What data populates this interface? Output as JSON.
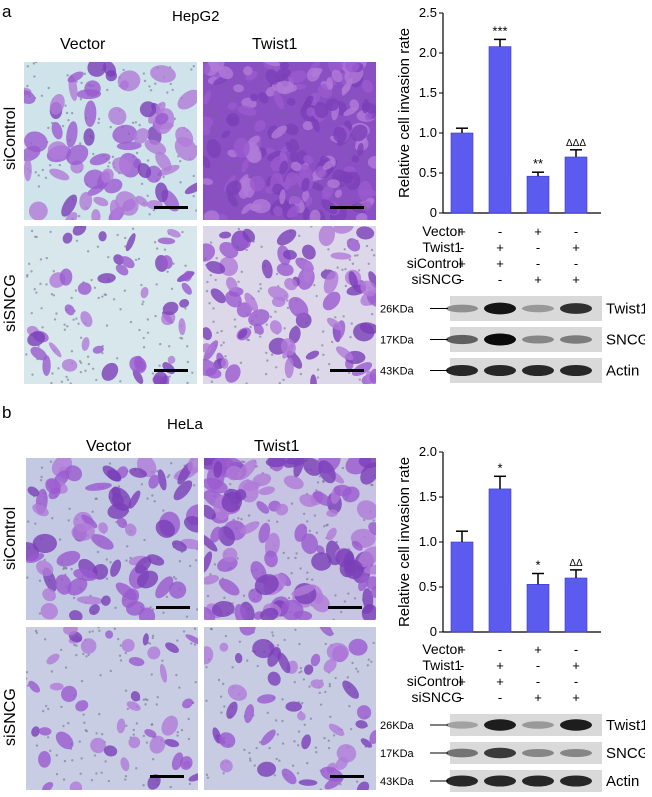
{
  "panels": [
    {
      "letter": "a",
      "cell_line": "HepG2",
      "columns": [
        "Vector",
        "Twist1"
      ],
      "rows": [
        "siControl",
        "siSNCG"
      ],
      "chart_data": {
        "type": "bar",
        "ylabel": "Relative cell invasion rate",
        "ylim": [
          0,
          2.5
        ],
        "yticks": [
          "0",
          "0.5",
          "1.0",
          "1.5",
          "2.0",
          "2.5"
        ],
        "values": [
          1.0,
          2.08,
          0.46,
          0.7
        ],
        "errors": [
          0.06,
          0.09,
          0.05,
          0.09
        ],
        "significance": [
          "",
          "***",
          "**",
          "ΔΔΔ"
        ],
        "bar_color": "#5b5bf0"
      },
      "conditions": [
        {
          "label": "Vector",
          "signs": [
            "+",
            "-",
            "+",
            "-"
          ]
        },
        {
          "label": "Twist1",
          "signs": [
            "-",
            "+",
            "-",
            "+"
          ]
        },
        {
          "label": "siControl",
          "signs": [
            "+",
            "+",
            "-",
            "-"
          ]
        },
        {
          "label": "siSNCG",
          "signs": [
            "-",
            "-",
            "+",
            "+"
          ]
        }
      ],
      "blots": [
        {
          "mw": "26KDa",
          "protein": "Twist1",
          "intensity": [
            0.3,
            0.95,
            0.25,
            0.8
          ]
        },
        {
          "mw": "17KDa",
          "protein": "SNCG",
          "intensity": [
            0.55,
            1.0,
            0.35,
            0.4
          ]
        },
        {
          "mw": "43KDa",
          "protein": "Actin",
          "intensity": [
            0.85,
            0.85,
            0.85,
            0.85
          ]
        }
      ]
    },
    {
      "letter": "b",
      "cell_line": "HeLa",
      "columns": [
        "Vector",
        "Twist1"
      ],
      "rows": [
        "siControl",
        "siSNCG"
      ],
      "chart_data": {
        "type": "bar",
        "ylabel": "Relative cell invasion rate",
        "ylim": [
          0,
          2.0
        ],
        "yticks": [
          "0",
          "0.5",
          "1.0",
          "1.5",
          "2.0"
        ],
        "values": [
          1.0,
          1.59,
          0.53,
          0.6
        ],
        "errors": [
          0.12,
          0.14,
          0.12,
          0.09
        ],
        "significance": [
          "",
          "*",
          "*",
          "ΔΔ"
        ],
        "bar_color": "#5b5bf0"
      },
      "conditions": [
        {
          "label": "Vector",
          "signs": [
            "+",
            "-",
            "+",
            "-"
          ]
        },
        {
          "label": "Twist1",
          "signs": [
            "-",
            "+",
            "-",
            "+"
          ]
        },
        {
          "label": "siControl",
          "signs": [
            "+",
            "+",
            "-",
            "-"
          ]
        },
        {
          "label": "siSNCG",
          "signs": [
            "-",
            "-",
            "+",
            "+"
          ]
        }
      ],
      "blots": [
        {
          "mw": "26KDa",
          "protein": "Twist1",
          "intensity": [
            0.2,
            0.9,
            0.25,
            0.9
          ]
        },
        {
          "mw": "17KDa",
          "protein": "SNCG",
          "intensity": [
            0.45,
            0.75,
            0.35,
            0.35
          ]
        },
        {
          "mw": "43KDa",
          "protein": "Actin",
          "intensity": [
            0.85,
            0.85,
            0.85,
            0.85
          ]
        }
      ]
    }
  ]
}
